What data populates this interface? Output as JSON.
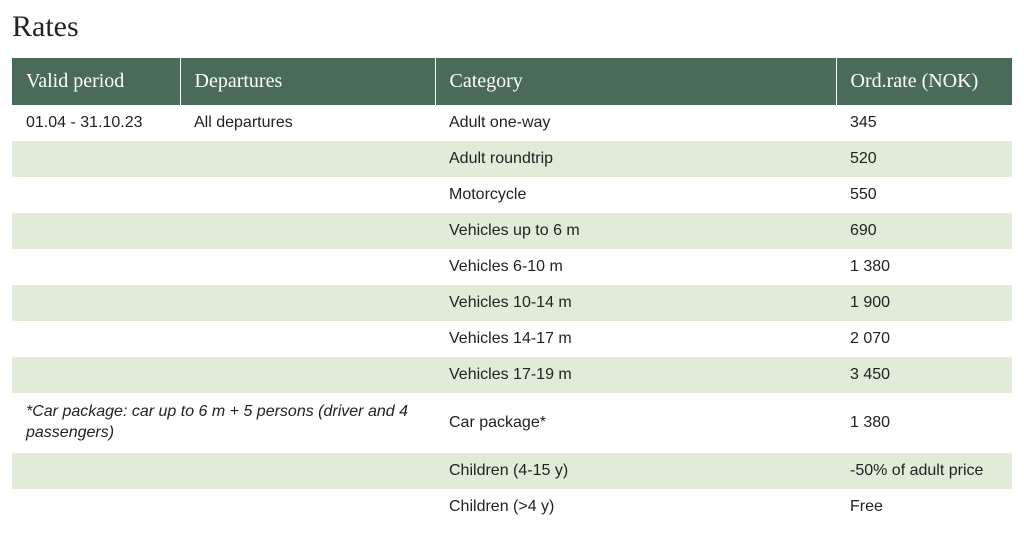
{
  "title": "Rates",
  "colors": {
    "header_bg": "#4a6b5a",
    "header_text": "#ffffff",
    "row_even_bg": "#e0ebd8",
    "row_odd_bg": "#ffffff",
    "text": "#222222"
  },
  "table": {
    "columns": [
      {
        "label": "Valid period"
      },
      {
        "label": "Departures"
      },
      {
        "label": "Category"
      },
      {
        "label": "Ord.rate (NOK)"
      }
    ],
    "rows": [
      {
        "period": "01.04 - 31.10.23",
        "departures": "All departures",
        "category": "Adult one-way",
        "rate": "345"
      },
      {
        "period": "",
        "departures": "",
        "category": "Adult roundtrip",
        "rate": "520"
      },
      {
        "period": "",
        "departures": "",
        "category": "Motorcycle",
        "rate": "550"
      },
      {
        "period": "",
        "departures": "",
        "category": "Vehicles up to 6 m",
        "rate": "690"
      },
      {
        "period": "",
        "departures": "",
        "category": "Vehicles 6-10 m",
        "rate": "1 380"
      },
      {
        "period": "",
        "departures": "",
        "category": "Vehicles 10-14 m",
        "rate": "1 900"
      },
      {
        "period": "",
        "departures": "",
        "category": "Vehicles 14-17 m",
        "rate": "2 070"
      },
      {
        "period": "",
        "departures": "",
        "category": "Vehicles 17-19 m",
        "rate": "3 450"
      },
      {
        "period_note": "*Car package: car up to 6 m + 5 persons (driver and 4 passengers)",
        "category": "Car package*",
        "rate": "1 380"
      },
      {
        "period": "",
        "departures": "",
        "category": "Children (4-15 y)",
        "rate": "-50% of adult price"
      },
      {
        "period": "",
        "departures": "",
        "category": "Children (>4 y)",
        "rate": "Free"
      }
    ]
  }
}
